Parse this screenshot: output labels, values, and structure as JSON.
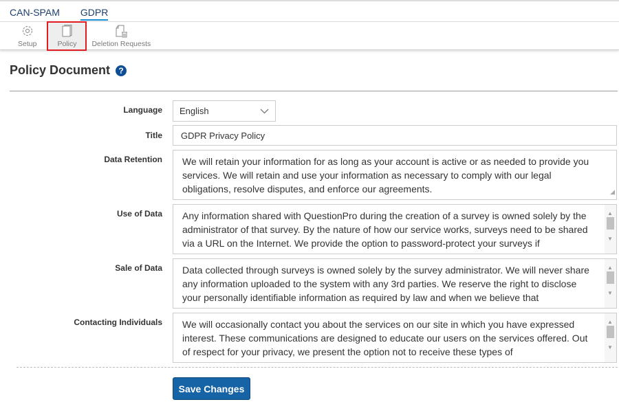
{
  "tabs": [
    {
      "label": "CAN-SPAM"
    },
    {
      "label": "GDPR",
      "active": true
    }
  ],
  "subnav": [
    {
      "label": "Setup",
      "icon": "gear-icon"
    },
    {
      "label": "Policy",
      "icon": "document-icon",
      "active": true
    },
    {
      "label": "Deletion Requests",
      "icon": "document-trash-icon"
    }
  ],
  "page_title": "Policy Document",
  "form": {
    "language": {
      "label": "Language",
      "value": "English"
    },
    "title": {
      "label": "Title",
      "value": "GDPR Privacy Policy"
    },
    "data_retention": {
      "label": "Data Retention",
      "value": "We will retain your information for as long as your account is active or as needed to provide you services. We will retain and use your information as necessary to comply with our legal obligations, resolve disputes, and enforce our agreements."
    },
    "use_of_data": {
      "label": "Use of Data",
      "value": "Any information shared with QuestionPro during the creation of a survey is owned solely by the administrator of that survey. By the nature of how our service works, surveys need to be shared via a URL on the Internet. We provide the option to password-protect your surveys if"
    },
    "sale_of_data": {
      "label": "Sale of Data",
      "value": "Data collected through surveys is owned solely by the survey administrator. We will never share any information uploaded to the system with any 3rd parties. We reserve the right to disclose your personally identifiable information as required by law and when we believe that"
    },
    "contacting_individuals": {
      "label": "Contacting Individuals",
      "value": "We will occasionally contact you about the services on our site in which you have expressed interest. These communications are designed to educate our users on the services offered. Out of respect for your privacy, we present the option not to receive these types of"
    }
  },
  "save_label": "Save Changes",
  "colors": {
    "accent": "#1663a6",
    "highlight": "#e01b22",
    "tab_underline": "#1b8fd4"
  }
}
